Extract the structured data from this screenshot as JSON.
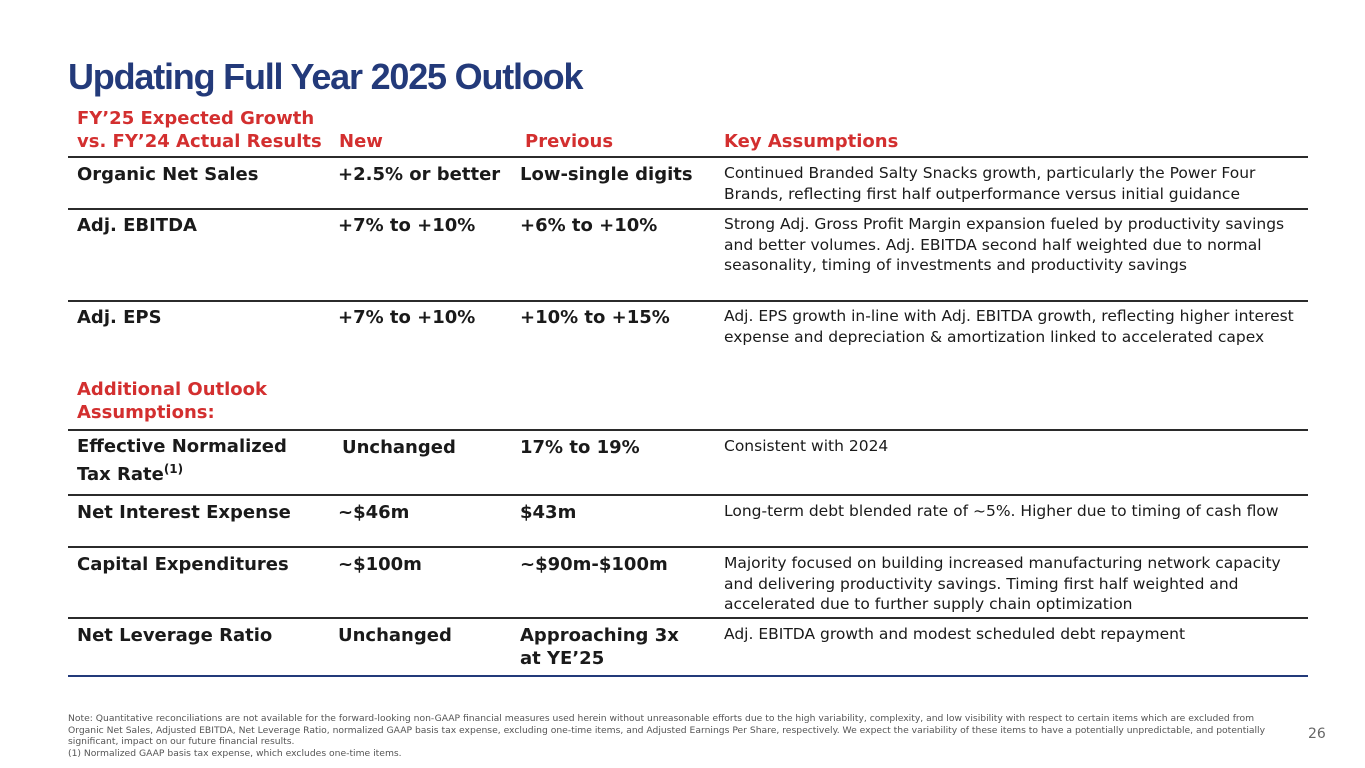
{
  "title": "Updating Full Year 2025 Outlook",
  "header": {
    "col1_line1": "FY’25 Expected Growth",
    "col1_line2": "vs. FY’24 Actual Results",
    "col2": "New",
    "col3": "Previous",
    "col4": "Key Assumptions"
  },
  "rows": [
    {
      "metric": "Organic Net Sales",
      "new": "+2.5% or better",
      "previous": "Low-single digits",
      "assumption": "Continued Branded Salty Snacks growth, particularly the Power Four Brands, reflecting first half outperformance versus initial guidance"
    },
    {
      "metric": "Adj. EBITDA",
      "new": "+7% to +10%",
      "previous": "+6% to +10%",
      "assumption": "Strong Adj. Gross Profit Margin expansion fueled by productivity savings and better volumes. Adj. EBITDA second half weighted due to normal seasonality, timing of investments and productivity savings"
    },
    {
      "metric": "Adj. EPS",
      "new": "+7% to +10%",
      "previous": "+10% to +15%",
      "assumption": "Adj. EPS growth in-line with Adj. EBITDA growth, reflecting higher interest expense and depreciation & amortization linked to accelerated capex"
    }
  ],
  "additional_header": {
    "line1": "Additional Outlook",
    "line2": "Assumptions:"
  },
  "additional_rows": [
    {
      "metric_line1": "Effective Normalized",
      "metric_line2": "Tax Rate",
      "metric_sup": "(1)",
      "new": "Unchanged",
      "previous": "17% to 19%",
      "assumption": "Consistent with 2024"
    },
    {
      "metric": "Net Interest Expense",
      "new": "~$46m",
      "previous": "$43m",
      "assumption": "Long-term debt blended rate of ~5%. Higher due to timing of cash flow"
    },
    {
      "metric": "Capital Expenditures",
      "new": "~$100m",
      "previous": "~$90m-$100m",
      "assumption": "Majority focused on building increased manufacturing network capacity and delivering productivity savings. Timing first half weighted and accelerated due to further supply chain optimization"
    },
    {
      "metric": "Net Leverage Ratio",
      "new": "Unchanged",
      "previous_line1": "Approaching 3x",
      "previous_line2": "at YE’25",
      "assumption": "Adj. EBITDA growth and modest scheduled debt repayment"
    }
  ],
  "footnote": {
    "note": "Note: Quantitative reconciliations are not available for the forward-looking non-GAAP financial measures used herein without unreasonable efforts due to the high variability, complexity, and low visibility with respect to certain items which are excluded from Organic Net Sales, Adjusted EBITDA, Net Leverage Ratio, normalized GAAP basis tax expense, excluding one-time items, and Adjusted Earnings Per Share, respectively. We expect the variability of these items to have a potentially unpredictable, and potentially significant, impact on our future financial results.",
    "footnote1": "(1) Normalized GAAP basis tax expense, which excludes one-time items."
  },
  "page_number": "26",
  "colors": {
    "title": "#233a7a",
    "accent_red": "#d32f2f",
    "rule": "#2b2b2b"
  }
}
